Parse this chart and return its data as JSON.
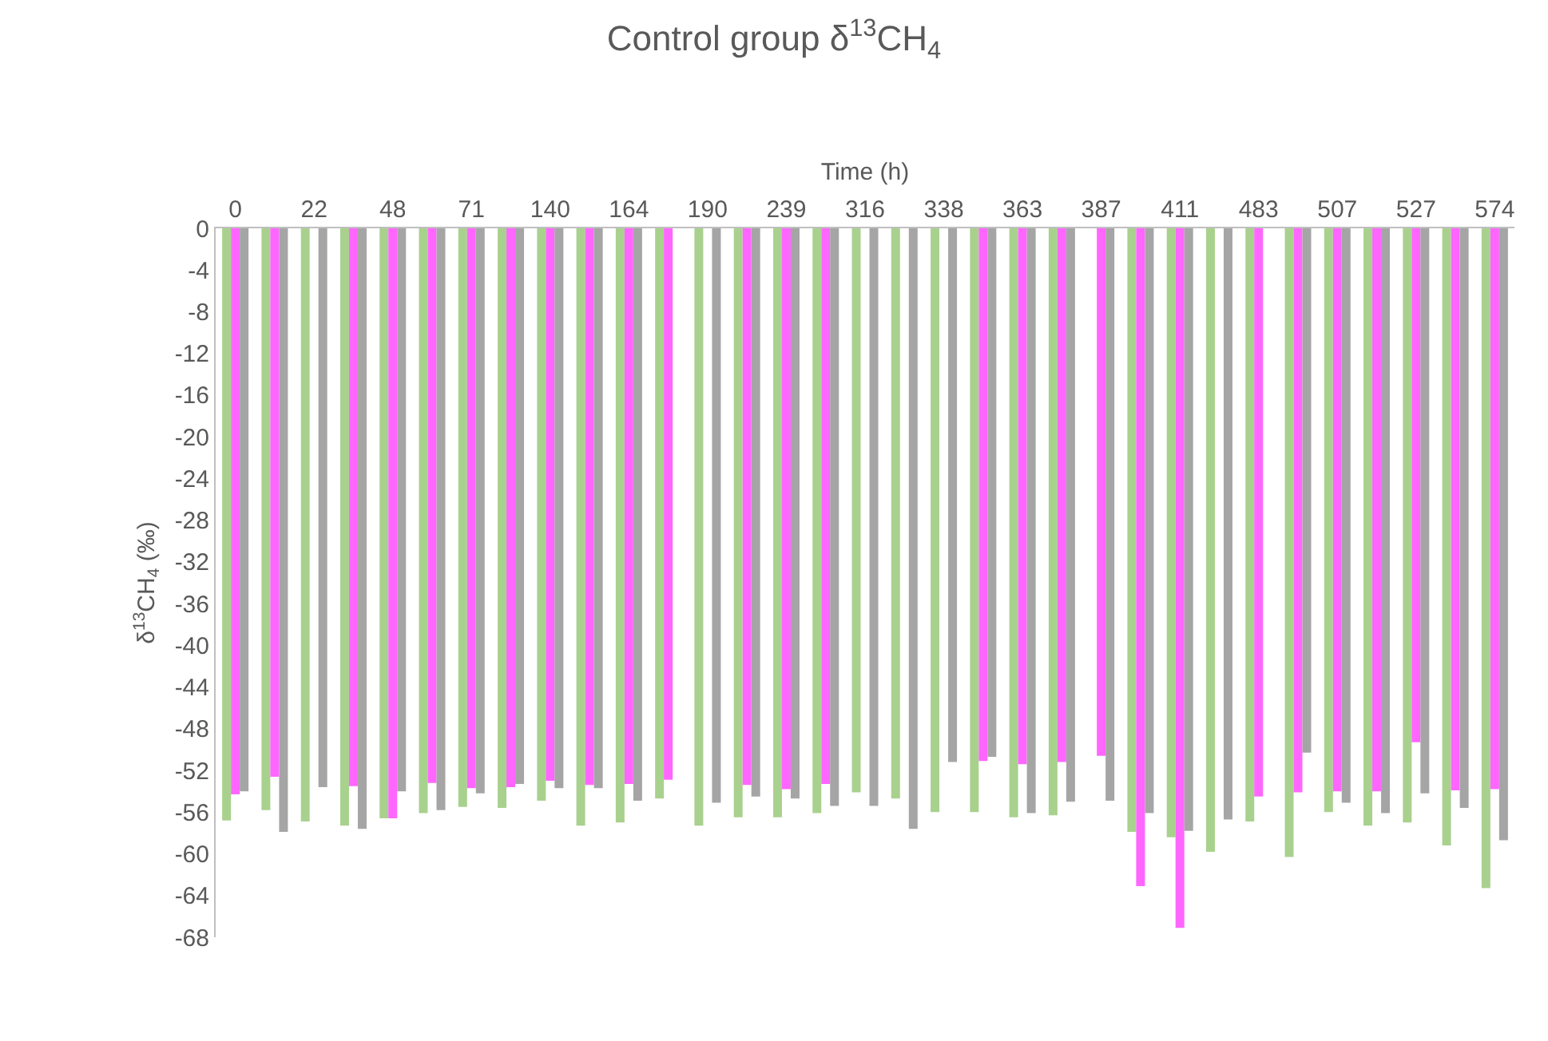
{
  "chart_data": {
    "type": "bar",
    "title": "Control group δ$^{13}$CH$_{4}$",
    "xlabel": "Time (h)",
    "ylabel": "δ$^{13}$CH$_{4}$ (‰)",
    "categories": [
      "0",
      null,
      "22",
      null,
      "48",
      null,
      "71",
      null,
      "140",
      null,
      "164",
      null,
      "190",
      null,
      "239",
      null,
      "316",
      null,
      "338",
      null,
      "363",
      null,
      "387",
      null,
      "411",
      null,
      "483",
      null,
      "507",
      null,
      "527",
      null,
      "574"
    ],
    "series": [
      {
        "color": "#a9d18e",
        "values": [
          -56.8,
          -55.8,
          -56.9,
          -57.3,
          -56.6,
          -56.1,
          -55.5,
          -55.6,
          -54.9,
          -57.3,
          -57.0,
          -54.7,
          -57.3,
          -56.5,
          -56.5,
          -56.1,
          -54.1,
          -54.7,
          -56.0,
          -56.0,
          -56.5,
          -56.3,
          null,
          -57.9,
          -58.4,
          -59.8,
          -56.9,
          -60.3,
          -56.0,
          -57.3,
          -57.0,
          -59.2,
          -63.3
        ]
      },
      {
        "color": "#ff66ff",
        "values": [
          -54.3,
          -52.6,
          null,
          -53.5,
          -56.6,
          -53.2,
          -53.7,
          -53.6,
          -53.0,
          -53.4,
          -53.3,
          -52.9,
          null,
          -53.4,
          -53.8,
          -53.3,
          null,
          null,
          null,
          -51.1,
          -51.4,
          -51.2,
          -50.6,
          -63.1,
          -67.1,
          null,
          -54.5,
          -54.1,
          -54.0,
          -54.0,
          -49.3,
          -53.9,
          -53.8
        ]
      },
      {
        "color": "#a5a5a5",
        "values": [
          -54.0,
          -57.9,
          -53.6,
          -57.6,
          -54.0,
          -55.8,
          -54.2,
          -53.3,
          -53.7,
          -53.7,
          -54.9,
          null,
          -55.1,
          -54.5,
          -54.7,
          -55.4,
          -55.4,
          -57.6,
          -51.2,
          -50.7,
          -56.1,
          -55.0,
          -54.9,
          -56.1,
          -57.8,
          -56.7,
          null,
          -50.3,
          -55.1,
          -56.1,
          -54.2,
          -55.6,
          -58.7
        ]
      }
    ],
    "ylim": [
      -68,
      0
    ],
    "yticks": [
      0,
      -4,
      -8,
      -12,
      -16,
      -20,
      -24,
      -28,
      -32,
      -36,
      -40,
      -44,
      -48,
      -52,
      -56,
      -60,
      -64,
      -68
    ]
  }
}
